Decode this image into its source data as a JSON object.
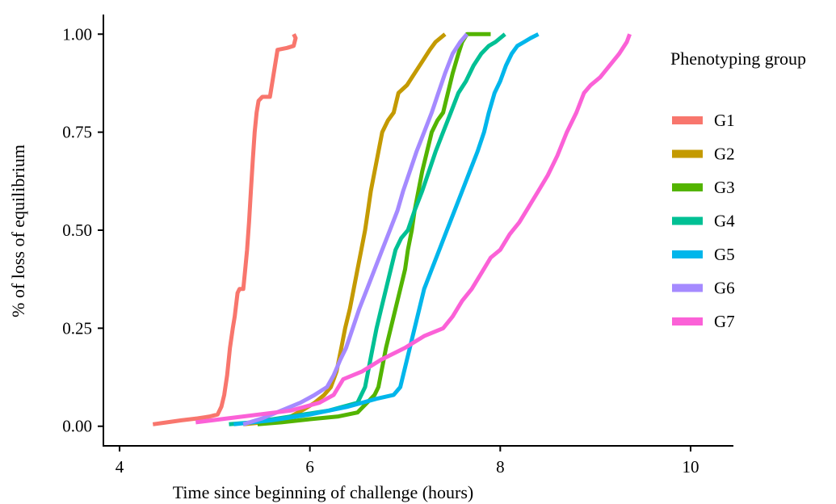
{
  "chart_data": {
    "type": "line",
    "xlabel": "Time since beginning of challenge (hours)",
    "ylabel": "% of loss of equilibrium",
    "xlim": [
      3.83,
      10.45
    ],
    "ylim": [
      -0.05,
      1.05
    ],
    "xticks": [
      4,
      6,
      8,
      10
    ],
    "xtick_labels": [
      "4",
      "6",
      "8",
      "10"
    ],
    "yticks": [
      0,
      0.25,
      0.5,
      0.75,
      1.0
    ],
    "ytick_labels": [
      "0.00",
      "0.25",
      "0.50",
      "0.75",
      "1.00"
    ],
    "grid": false,
    "legend": {
      "title": "Phenotyping group",
      "position": "right"
    },
    "series": [
      {
        "name": "G1",
        "color": "#F8766D",
        "points": [
          [
            4.35,
            0.005
          ],
          [
            4.5,
            0.01
          ],
          [
            4.65,
            0.015
          ],
          [
            4.82,
            0.02
          ],
          [
            4.95,
            0.025
          ],
          [
            5.03,
            0.03
          ],
          [
            5.07,
            0.05
          ],
          [
            5.1,
            0.08
          ],
          [
            5.13,
            0.13
          ],
          [
            5.16,
            0.2
          ],
          [
            5.19,
            0.25
          ],
          [
            5.21,
            0.28
          ],
          [
            5.24,
            0.34
          ],
          [
            5.26,
            0.35
          ],
          [
            5.3,
            0.35
          ],
          [
            5.32,
            0.4
          ],
          [
            5.34,
            0.45
          ],
          [
            5.36,
            0.52
          ],
          [
            5.38,
            0.6
          ],
          [
            5.4,
            0.68
          ],
          [
            5.42,
            0.75
          ],
          [
            5.44,
            0.8
          ],
          [
            5.46,
            0.83
          ],
          [
            5.5,
            0.84
          ],
          [
            5.58,
            0.84
          ],
          [
            5.62,
            0.9
          ],
          [
            5.66,
            0.96
          ],
          [
            5.76,
            0.965
          ],
          [
            5.83,
            0.97
          ],
          [
            5.85,
            0.99
          ],
          [
            5.83,
            1.0
          ]
        ]
      },
      {
        "name": "G2",
        "color": "#C49A00",
        "points": [
          [
            5.3,
            0.005
          ],
          [
            5.6,
            0.012
          ],
          [
            5.8,
            0.025
          ],
          [
            5.95,
            0.045
          ],
          [
            6.05,
            0.06
          ],
          [
            6.15,
            0.08
          ],
          [
            6.22,
            0.1
          ],
          [
            6.28,
            0.14
          ],
          [
            6.33,
            0.2
          ],
          [
            6.37,
            0.25
          ],
          [
            6.42,
            0.3
          ],
          [
            6.46,
            0.35
          ],
          [
            6.5,
            0.4
          ],
          [
            6.54,
            0.45
          ],
          [
            6.58,
            0.5
          ],
          [
            6.61,
            0.55
          ],
          [
            6.64,
            0.6
          ],
          [
            6.68,
            0.65
          ],
          [
            6.72,
            0.7
          ],
          [
            6.76,
            0.75
          ],
          [
            6.82,
            0.78
          ],
          [
            6.88,
            0.8
          ],
          [
            6.93,
            0.85
          ],
          [
            7.02,
            0.87
          ],
          [
            7.1,
            0.9
          ],
          [
            7.18,
            0.93
          ],
          [
            7.26,
            0.96
          ],
          [
            7.32,
            0.98
          ],
          [
            7.42,
            1.0
          ]
        ]
      },
      {
        "name": "G3",
        "color": "#53B400",
        "points": [
          [
            5.45,
            0.005
          ],
          [
            5.7,
            0.01
          ],
          [
            6.0,
            0.018
          ],
          [
            6.3,
            0.025
          ],
          [
            6.5,
            0.035
          ],
          [
            6.6,
            0.06
          ],
          [
            6.68,
            0.08
          ],
          [
            6.72,
            0.1
          ],
          [
            6.76,
            0.15
          ],
          [
            6.8,
            0.2
          ],
          [
            6.85,
            0.25
          ],
          [
            6.9,
            0.3
          ],
          [
            6.95,
            0.35
          ],
          [
            7.0,
            0.4
          ],
          [
            7.03,
            0.45
          ],
          [
            7.07,
            0.5
          ],
          [
            7.1,
            0.55
          ],
          [
            7.14,
            0.6
          ],
          [
            7.18,
            0.65
          ],
          [
            7.23,
            0.7
          ],
          [
            7.28,
            0.75
          ],
          [
            7.34,
            0.78
          ],
          [
            7.4,
            0.8
          ],
          [
            7.45,
            0.85
          ],
          [
            7.5,
            0.9
          ],
          [
            7.56,
            0.95
          ],
          [
            7.6,
            0.98
          ],
          [
            7.65,
            1.0
          ],
          [
            7.9,
            1.0
          ]
        ]
      },
      {
        "name": "G4",
        "color": "#00C094",
        "points": [
          [
            5.15,
            0.005
          ],
          [
            5.4,
            0.01
          ],
          [
            5.8,
            0.025
          ],
          [
            6.2,
            0.04
          ],
          [
            6.5,
            0.06
          ],
          [
            6.58,
            0.1
          ],
          [
            6.62,
            0.15
          ],
          [
            6.66,
            0.2
          ],
          [
            6.7,
            0.25
          ],
          [
            6.75,
            0.3
          ],
          [
            6.8,
            0.35
          ],
          [
            6.85,
            0.4
          ],
          [
            6.9,
            0.45
          ],
          [
            6.96,
            0.48
          ],
          [
            7.03,
            0.5
          ],
          [
            7.1,
            0.55
          ],
          [
            7.18,
            0.6
          ],
          [
            7.25,
            0.65
          ],
          [
            7.32,
            0.7
          ],
          [
            7.4,
            0.75
          ],
          [
            7.48,
            0.8
          ],
          [
            7.56,
            0.85
          ],
          [
            7.64,
            0.88
          ],
          [
            7.72,
            0.92
          ],
          [
            7.8,
            0.95
          ],
          [
            7.88,
            0.97
          ],
          [
            7.95,
            0.98
          ],
          [
            8.05,
            1.0
          ]
        ]
      },
      {
        "name": "G5",
        "color": "#00B6EB",
        "points": [
          [
            5.2,
            0.005
          ],
          [
            5.6,
            0.015
          ],
          [
            6.0,
            0.03
          ],
          [
            6.4,
            0.05
          ],
          [
            6.7,
            0.07
          ],
          [
            6.88,
            0.08
          ],
          [
            6.95,
            0.1
          ],
          [
            7.0,
            0.15
          ],
          [
            7.05,
            0.2
          ],
          [
            7.1,
            0.25
          ],
          [
            7.15,
            0.3
          ],
          [
            7.2,
            0.35
          ],
          [
            7.28,
            0.4
          ],
          [
            7.36,
            0.45
          ],
          [
            7.44,
            0.5
          ],
          [
            7.52,
            0.55
          ],
          [
            7.6,
            0.6
          ],
          [
            7.68,
            0.65
          ],
          [
            7.76,
            0.7
          ],
          [
            7.83,
            0.75
          ],
          [
            7.88,
            0.8
          ],
          [
            7.94,
            0.85
          ],
          [
            8.0,
            0.88
          ],
          [
            8.06,
            0.92
          ],
          [
            8.12,
            0.95
          ],
          [
            8.18,
            0.97
          ],
          [
            8.25,
            0.98
          ],
          [
            8.32,
            0.99
          ],
          [
            8.4,
            1.0
          ]
        ]
      },
      {
        "name": "G6",
        "color": "#A58AFF",
        "points": [
          [
            5.3,
            0.005
          ],
          [
            5.5,
            0.02
          ],
          [
            5.7,
            0.04
          ],
          [
            5.9,
            0.06
          ],
          [
            6.05,
            0.08
          ],
          [
            6.18,
            0.1
          ],
          [
            6.25,
            0.13
          ],
          [
            6.32,
            0.17
          ],
          [
            6.38,
            0.2
          ],
          [
            6.45,
            0.25
          ],
          [
            6.52,
            0.3
          ],
          [
            6.6,
            0.35
          ],
          [
            6.68,
            0.4
          ],
          [
            6.76,
            0.45
          ],
          [
            6.84,
            0.5
          ],
          [
            6.92,
            0.55
          ],
          [
            6.98,
            0.6
          ],
          [
            7.05,
            0.65
          ],
          [
            7.12,
            0.7
          ],
          [
            7.2,
            0.75
          ],
          [
            7.28,
            0.8
          ],
          [
            7.35,
            0.85
          ],
          [
            7.42,
            0.9
          ],
          [
            7.5,
            0.95
          ],
          [
            7.58,
            0.98
          ],
          [
            7.65,
            1.0
          ]
        ]
      },
      {
        "name": "G7",
        "color": "#FB61D7",
        "points": [
          [
            4.8,
            0.01
          ],
          [
            5.3,
            0.025
          ],
          [
            5.8,
            0.04
          ],
          [
            6.1,
            0.06
          ],
          [
            6.25,
            0.08
          ],
          [
            6.35,
            0.12
          ],
          [
            6.55,
            0.14
          ],
          [
            6.75,
            0.17
          ],
          [
            7.0,
            0.2
          ],
          [
            7.2,
            0.23
          ],
          [
            7.4,
            0.25
          ],
          [
            7.5,
            0.28
          ],
          [
            7.6,
            0.32
          ],
          [
            7.7,
            0.35
          ],
          [
            7.8,
            0.39
          ],
          [
            7.9,
            0.43
          ],
          [
            8.0,
            0.45
          ],
          [
            8.1,
            0.49
          ],
          [
            8.2,
            0.52
          ],
          [
            8.3,
            0.56
          ],
          [
            8.4,
            0.6
          ],
          [
            8.5,
            0.64
          ],
          [
            8.6,
            0.69
          ],
          [
            8.7,
            0.75
          ],
          [
            8.8,
            0.8
          ],
          [
            8.88,
            0.85
          ],
          [
            8.95,
            0.87
          ],
          [
            9.05,
            0.89
          ],
          [
            9.15,
            0.92
          ],
          [
            9.25,
            0.95
          ],
          [
            9.33,
            0.98
          ],
          [
            9.36,
            1.0
          ]
        ]
      }
    ]
  }
}
